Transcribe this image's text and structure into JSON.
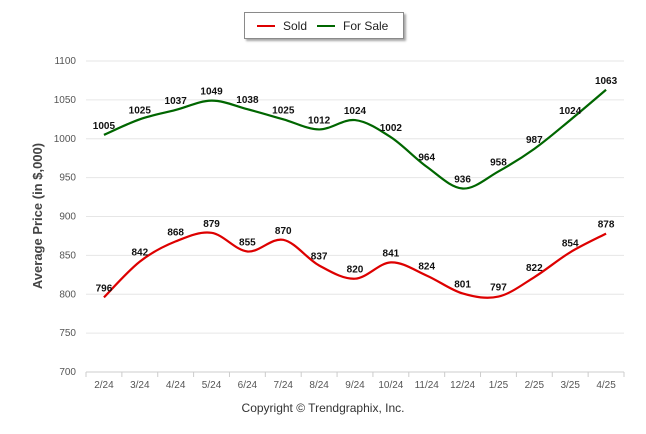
{
  "chart_data": {
    "type": "line",
    "title": "",
    "xlabel": "",
    "ylabel": "Average Price (in $,000)",
    "ylim": [
      700,
      1100
    ],
    "yticks": [
      700,
      750,
      800,
      850,
      900,
      950,
      1000,
      1050,
      1100
    ],
    "grid": true,
    "legend_position": "top-center",
    "categories": [
      "2/24",
      "3/24",
      "4/24",
      "5/24",
      "6/24",
      "7/24",
      "8/24",
      "9/24",
      "10/24",
      "11/24",
      "12/24",
      "1/25",
      "2/25",
      "3/25",
      "4/25"
    ],
    "series": [
      {
        "name": "Sold",
        "color": "#dd0000",
        "values": [
          796,
          842,
          868,
          879,
          855,
          870,
          837,
          820,
          841,
          824,
          801,
          797,
          822,
          854,
          878
        ]
      },
      {
        "name": "For Sale",
        "color": "#006600",
        "values": [
          1005,
          1025,
          1037,
          1049,
          1038,
          1025,
          1012,
          1024,
          1002,
          964,
          936,
          958,
          987,
          1024,
          1063
        ]
      }
    ]
  },
  "footer": {
    "copyright": "Copyright © Trendgraphix, Inc."
  }
}
